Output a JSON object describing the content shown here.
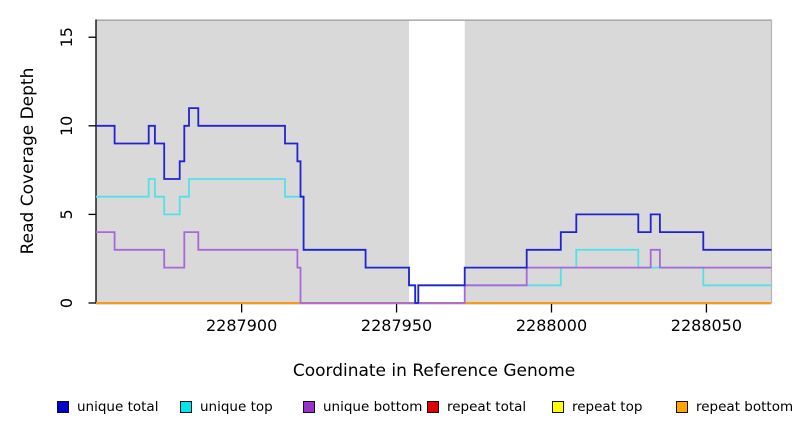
{
  "figure": {
    "background": "#ffffff",
    "plot_background": "#d9d9d9",
    "masked_region_color": "#ffffff",
    "border_color": "#9a9a9a",
    "axis_color": "#000000"
  },
  "chart_data": {
    "type": "line",
    "subtype": "step",
    "title": "",
    "xlabel": "Coordinate in Reference Genome",
    "ylabel": "Read Coverage Depth",
    "xlim": [
      2287853,
      2288071
    ],
    "ylim": [
      0,
      16
    ],
    "x_ticks": [
      2287900,
      2287950,
      2288000,
      2288050
    ],
    "y_ticks": [
      0,
      5,
      10,
      15
    ],
    "grid": false,
    "legend_position": "bottom",
    "masked_region": {
      "x_start": 2287954,
      "x_end": 2287972
    },
    "series": [
      {
        "name": "unique total",
        "color": "#2222d2",
        "legend_color": "#0000cd",
        "points": [
          [
            2287853,
            10
          ],
          [
            2287859,
            9
          ],
          [
            2287870,
            10
          ],
          [
            2287872,
            9
          ],
          [
            2287875,
            7
          ],
          [
            2287880,
            8
          ],
          [
            2287881.5,
            10
          ],
          [
            2287883,
            11
          ],
          [
            2287886,
            10
          ],
          [
            2287914,
            9
          ],
          [
            2287918,
            8
          ],
          [
            2287919,
            6
          ],
          [
            2287920,
            3
          ],
          [
            2287940,
            2
          ],
          [
            2287954,
            1
          ],
          [
            2287956,
            0
          ],
          [
            2287957,
            1
          ],
          [
            2287972,
            2
          ],
          [
            2287992,
            3
          ],
          [
            2288003,
            4
          ],
          [
            2288008,
            5
          ],
          [
            2288028,
            4
          ],
          [
            2288032,
            5
          ],
          [
            2288035,
            4
          ],
          [
            2288049,
            3
          ],
          [
            2288071,
            3
          ]
        ]
      },
      {
        "name": "unique top",
        "color": "#55e0e8",
        "legend_color": "#00e5ee",
        "points": [
          [
            2287853,
            6
          ],
          [
            2287870,
            7
          ],
          [
            2287872,
            6
          ],
          [
            2287875,
            5
          ],
          [
            2287880,
            6
          ],
          [
            2287883,
            7
          ],
          [
            2287914,
            6
          ],
          [
            2287920,
            3
          ],
          [
            2287940,
            2
          ],
          [
            2287954,
            1
          ],
          [
            2287956,
            0
          ],
          [
            2287957,
            1
          ],
          [
            2288003,
            2
          ],
          [
            2288008,
            3
          ],
          [
            2288028,
            2
          ],
          [
            2288049,
            1
          ],
          [
            2288071,
            1
          ]
        ]
      },
      {
        "name": "unique bottom",
        "color": "#a868d8",
        "legend_color": "#9932cc",
        "points": [
          [
            2287853,
            4
          ],
          [
            2287859,
            3
          ],
          [
            2287875,
            2
          ],
          [
            2287881.5,
            4
          ],
          [
            2287886,
            3
          ],
          [
            2287918,
            2
          ],
          [
            2287919,
            0
          ],
          [
            2287972,
            1
          ],
          [
            2287992,
            2
          ],
          [
            2288032,
            3
          ],
          [
            2288035,
            2
          ],
          [
            2288071,
            2
          ]
        ]
      },
      {
        "name": "repeat total",
        "color": "#dd1111",
        "legend_color": "#e00000",
        "points": [
          [
            2287853,
            0
          ],
          [
            2288071,
            0
          ]
        ]
      },
      {
        "name": "repeat top",
        "color": "#ffff33",
        "legend_color": "#ffff00",
        "points": [
          [
            2287853,
            0
          ],
          [
            2288071,
            0
          ]
        ]
      },
      {
        "name": "repeat bottom",
        "color": "#ff9015",
        "legend_color": "#ffa500",
        "points": [
          [
            2287853,
            0
          ],
          [
            2288071,
            0
          ]
        ]
      }
    ]
  }
}
